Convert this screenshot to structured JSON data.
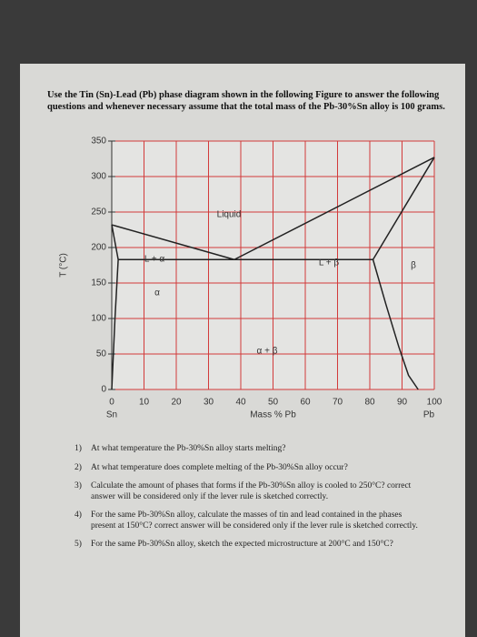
{
  "intro": "Use the Tin (Sn)-Lead (Pb) phase diagram shown in the following Figure to answer the following questions and whenever necessary assume that the total mass of the Pb-30%Sn alloy is 100 grams.",
  "diagram": {
    "ylabel": "T (°C)",
    "xlabel": "Mass % Pb",
    "x_left": "Sn",
    "x_right": "Pb",
    "xlim": [
      0,
      100
    ],
    "ylim": [
      0,
      350
    ],
    "xticks": [
      0,
      10,
      20,
      30,
      40,
      50,
      60,
      70,
      80,
      90,
      100
    ],
    "yticks": [
      0,
      50,
      100,
      150,
      200,
      250,
      300,
      350
    ],
    "regions": [
      "Liquid",
      "L + α",
      "L + β",
      "α",
      "β",
      "α + β"
    ],
    "boundaries": [
      {
        "x": [
          0,
          38
        ],
        "y": [
          232,
          183
        ]
      },
      {
        "x": [
          38,
          100
        ],
        "y": [
          183,
          327
        ]
      },
      {
        "x": [
          0,
          2
        ],
        "y": [
          232,
          183
        ]
      },
      {
        "x": [
          2,
          81
        ],
        "y": [
          183,
          183
        ]
      },
      {
        "x": [
          81,
          100
        ],
        "y": [
          183,
          327
        ]
      },
      {
        "x": [
          2,
          1,
          0
        ],
        "y": [
          183,
          100,
          0
        ]
      },
      {
        "x": [
          81,
          85,
          89,
          92,
          95
        ],
        "y": [
          183,
          120,
          60,
          20,
          0
        ]
      }
    ]
  },
  "questions": [
    {
      "num": "1)",
      "text": "At what temperature the Pb-30%Sn alloy starts melting?"
    },
    {
      "num": "2)",
      "text": "At what temperature does complete melting of the Pb-30%Sn alloy occur?"
    },
    {
      "num": "3)",
      "text": "Calculate the amount of phases that forms if the Pb-30%Sn alloy is cooled to 250°C? correct answer will be considered only if the lever rule is sketched correctly."
    },
    {
      "num": "4)",
      "text": "For the same Pb-30%Sn alloy, calculate the masses of tin and lead contained in the phases present at 150°C? correct answer will be considered only if the lever rule is sketched correctly."
    },
    {
      "num": "5)",
      "text": "For the same Pb-30%Sn alloy, sketch the expected microstructure at 200°C and 150°C?"
    }
  ]
}
